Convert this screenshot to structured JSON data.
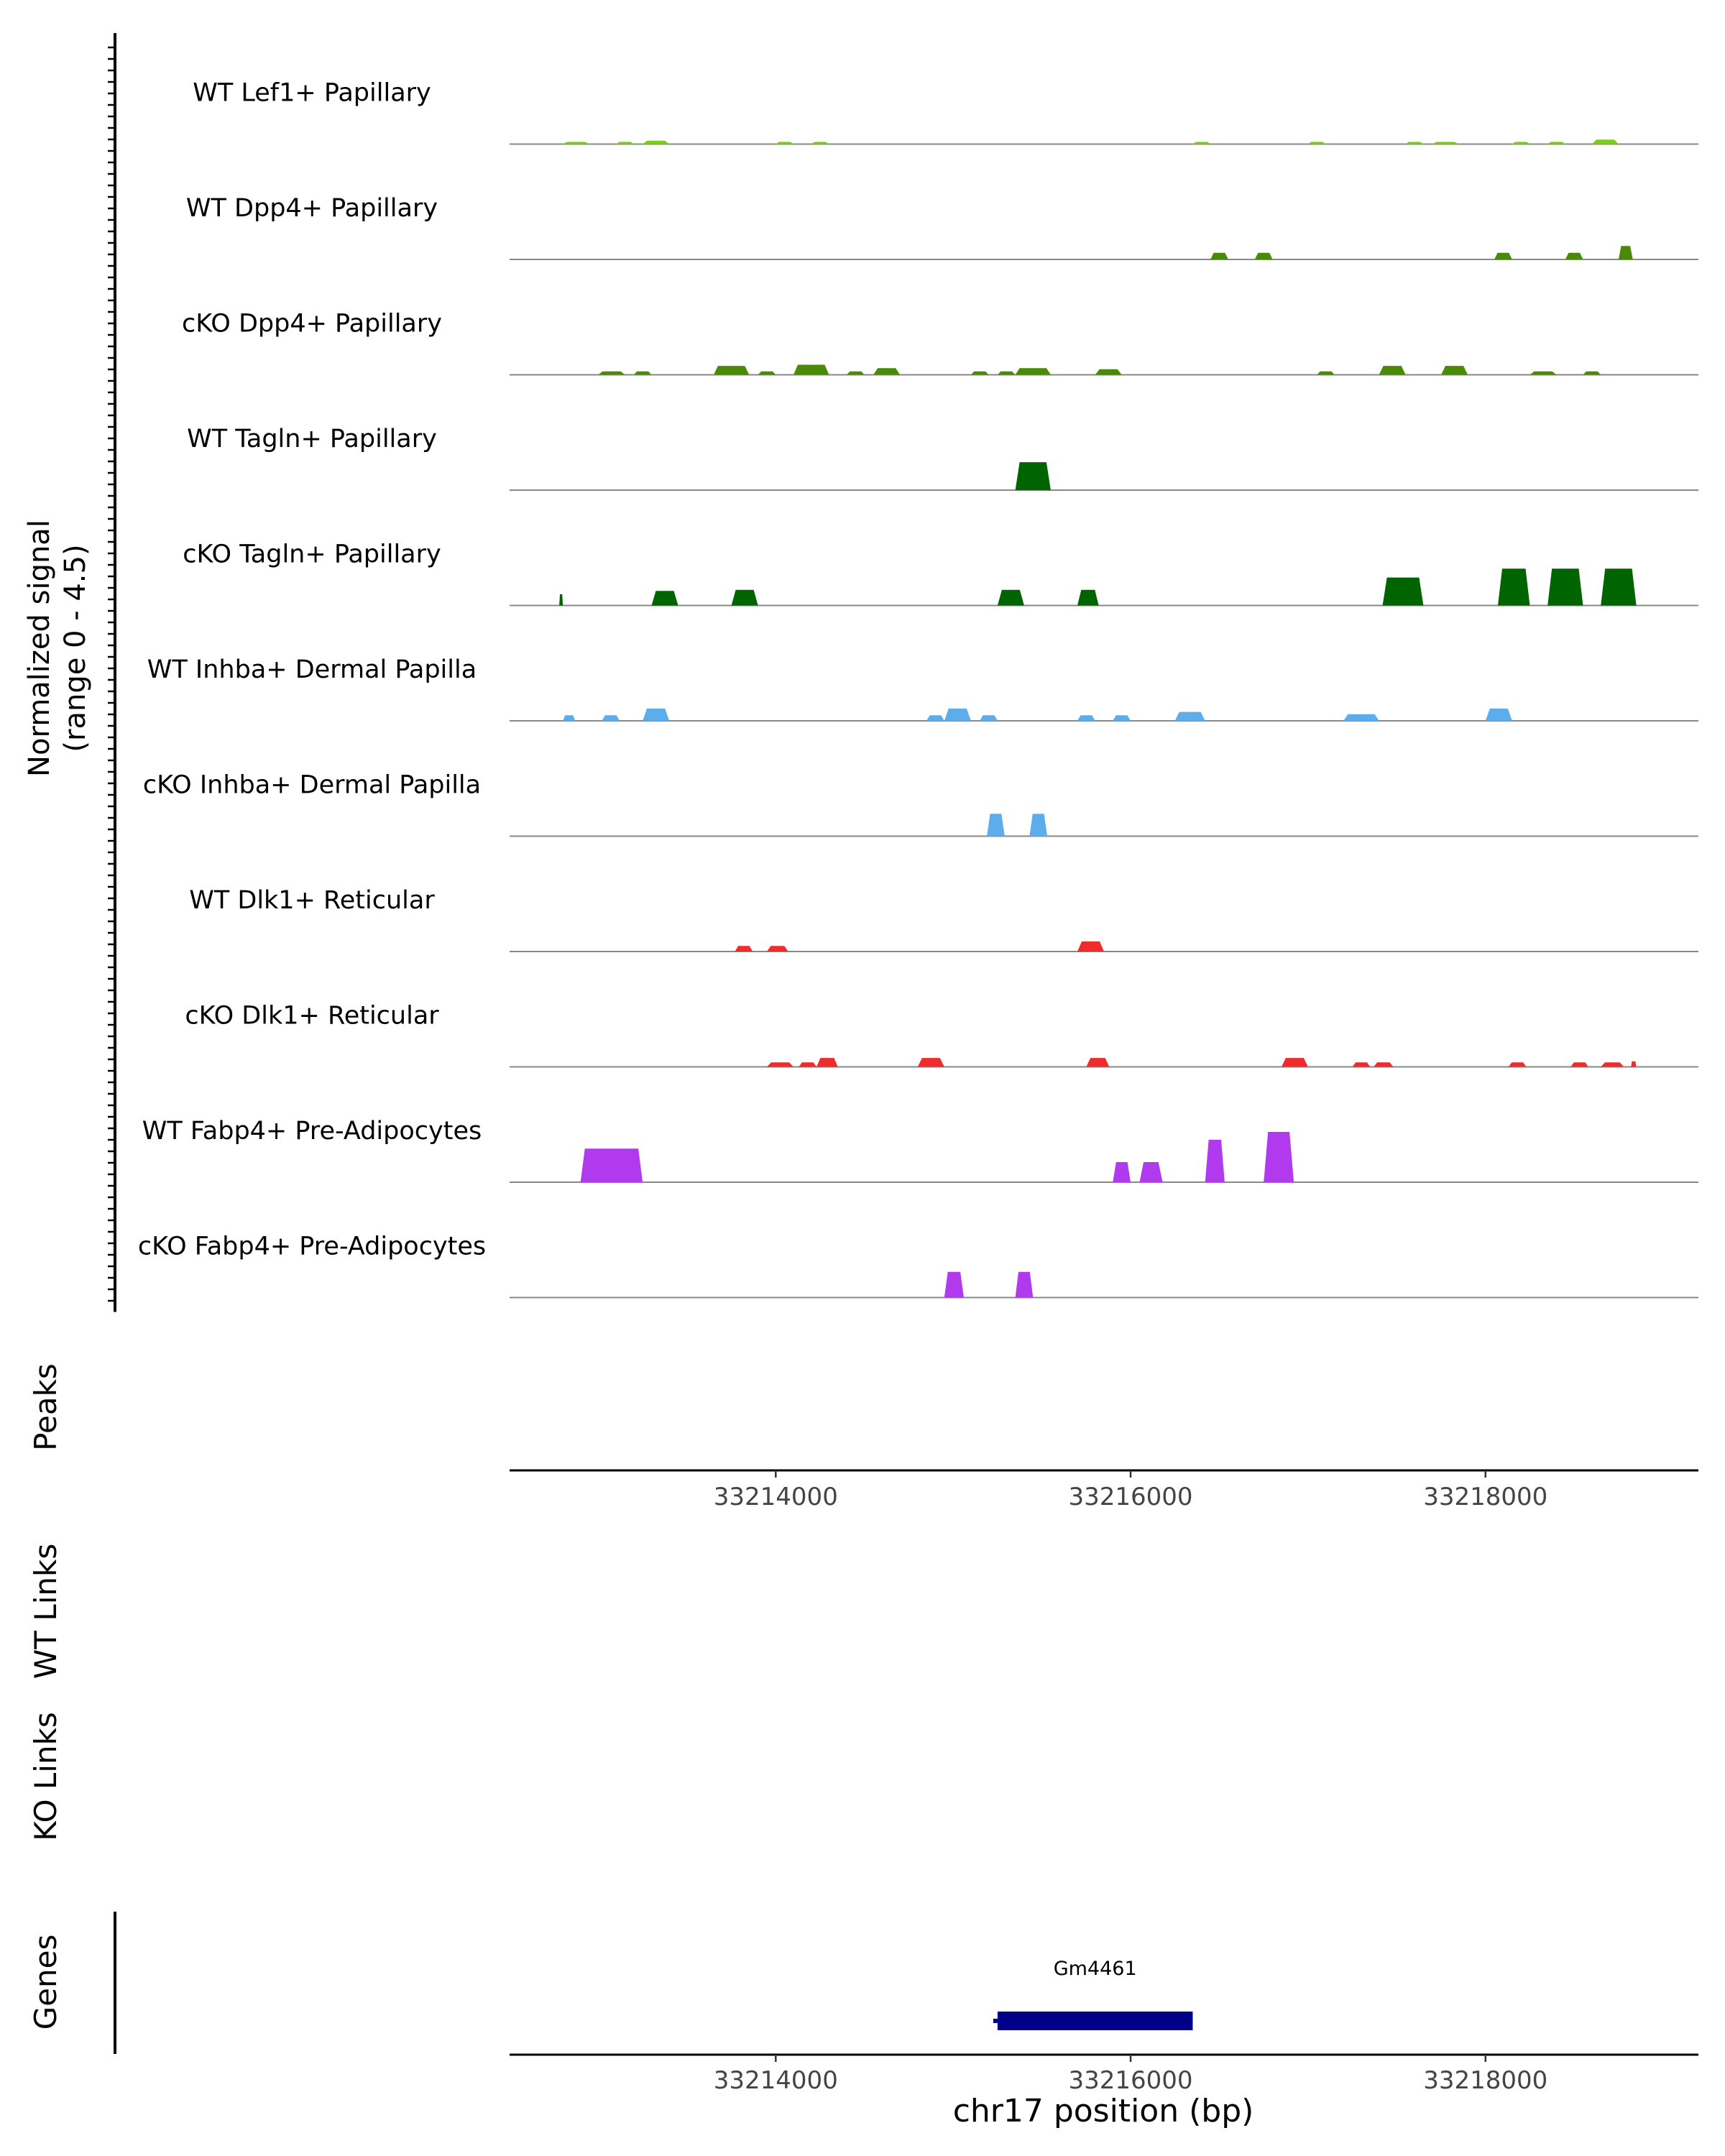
{
  "chart_data": {
    "type": "area",
    "genomic_range": [
      33212500,
      33219200
    ],
    "signal_ylabel": [
      "Normalized signal",
      "(range 0 - 4.5)"
    ],
    "signal_ylim": [
      0,
      4.5
    ],
    "xlabel": "chr17 position (bp)",
    "x_ticks": [
      33214000,
      33216000,
      33218000
    ],
    "x_tick_labels": [
      "33214000",
      "33216000",
      "33218000"
    ],
    "panel_labels": {
      "peaks": "Peaks",
      "wt_links": "WT Links",
      "ko_links": "KO Links",
      "genes": "Genes"
    },
    "tracks": [
      {
        "name": "WT Lef1+ Papillary",
        "color": "#7CCD1A",
        "peaks": [
          [
            33212800,
            33212950,
            0.2
          ],
          [
            33213100,
            33213200,
            0.2
          ],
          [
            33213250,
            33213400,
            0.3
          ],
          [
            33214000,
            33214100,
            0.2
          ],
          [
            33214200,
            33214300,
            0.2
          ],
          [
            33216350,
            33216450,
            0.2
          ],
          [
            33217000,
            33217100,
            0.2
          ],
          [
            33217550,
            33217650,
            0.2
          ],
          [
            33217700,
            33217850,
            0.2
          ],
          [
            33218150,
            33218250,
            0.2
          ],
          [
            33218350,
            33218450,
            0.2
          ],
          [
            33218600,
            33218750,
            0.4
          ]
        ]
      },
      {
        "name": "WT Dpp4+ Papillary",
        "color": "#4B8A08",
        "peaks": [
          [
            33216450,
            33216550,
            0.6
          ],
          [
            33216700,
            33216800,
            0.6
          ],
          [
            33218050,
            33218150,
            0.6
          ],
          [
            33218450,
            33218550,
            0.6
          ],
          [
            33218750,
            33218830,
            1.2
          ]
        ]
      },
      {
        "name": "cKO Dpp4+ Papillary",
        "color": "#4B8A08",
        "peaks": [
          [
            33213000,
            33213150,
            0.3
          ],
          [
            33213200,
            33213300,
            0.3
          ],
          [
            33213650,
            33213850,
            0.8
          ],
          [
            33213900,
            33214000,
            0.3
          ],
          [
            33214100,
            33214300,
            0.9
          ],
          [
            33214400,
            33214500,
            0.3
          ],
          [
            33214550,
            33214700,
            0.6
          ],
          [
            33215100,
            33215200,
            0.3
          ],
          [
            33215250,
            33215350,
            0.3
          ],
          [
            33215350,
            33215550,
            0.6
          ],
          [
            33215800,
            33215950,
            0.5
          ],
          [
            33217050,
            33217150,
            0.3
          ],
          [
            33217400,
            33217550,
            0.8
          ],
          [
            33217750,
            33217900,
            0.8
          ],
          [
            33218250,
            33218400,
            0.3
          ],
          [
            33218550,
            33218650,
            0.3
          ]
        ]
      },
      {
        "name": "WT Tagln+ Papillary",
        "color": "#006400",
        "peaks": [
          [
            33215350,
            33215550,
            2.5
          ]
        ]
      },
      {
        "name": "cKO Tagln+ Papillary",
        "color": "#006400",
        "peaks": [
          [
            33212780,
            33212800,
            1.0
          ],
          [
            33213300,
            33213450,
            1.3
          ],
          [
            33213750,
            33213900,
            1.4
          ],
          [
            33215250,
            33215400,
            1.4
          ],
          [
            33215700,
            33215820,
            1.4
          ],
          [
            33217420,
            33217650,
            2.5
          ],
          [
            33218070,
            33218250,
            3.3
          ],
          [
            33218350,
            33218550,
            3.3
          ],
          [
            33218650,
            33218850,
            3.3
          ]
        ]
      },
      {
        "name": "WT Inhba+ Dermal Papilla",
        "color": "#5DADEC",
        "peaks": [
          [
            33212800,
            33212870,
            0.5
          ],
          [
            33213020,
            33213120,
            0.5
          ],
          [
            33213250,
            33213400,
            1.1
          ],
          [
            33214850,
            33214950,
            0.5
          ],
          [
            33214950,
            33215100,
            1.1
          ],
          [
            33215150,
            33215250,
            0.5
          ],
          [
            33215700,
            33215800,
            0.5
          ],
          [
            33215900,
            33216000,
            0.5
          ],
          [
            33216250,
            33216420,
            0.8
          ],
          [
            33217200,
            33217400,
            0.6
          ],
          [
            33218000,
            33218150,
            1.1
          ]
        ]
      },
      {
        "name": "cKO Inhba+ Dermal Papilla",
        "color": "#5DADEC",
        "peaks": [
          [
            33215190,
            33215290,
            2.0
          ],
          [
            33215430,
            33215530,
            2.0
          ]
        ]
      },
      {
        "name": "WT Dlk1+ Reticular",
        "color": "#EE2C2C",
        "peaks": [
          [
            33213770,
            33213870,
            0.5
          ],
          [
            33213950,
            33214070,
            0.5
          ],
          [
            33215700,
            33215850,
            0.9
          ]
        ]
      },
      {
        "name": "cKO Dlk1+ Reticular",
        "color": "#EE2C2C",
        "peaks": [
          [
            33213950,
            33214100,
            0.4
          ],
          [
            33214130,
            33214230,
            0.4
          ],
          [
            33214230,
            33214350,
            0.8
          ],
          [
            33214800,
            33214950,
            0.8
          ],
          [
            33215750,
            33215880,
            0.8
          ],
          [
            33216850,
            33217000,
            0.8
          ],
          [
            33217250,
            33217350,
            0.4
          ],
          [
            33217370,
            33217480,
            0.4
          ],
          [
            33218130,
            33218230,
            0.4
          ],
          [
            33218480,
            33218580,
            0.4
          ],
          [
            33218650,
            33218780,
            0.4
          ],
          [
            33218820,
            33218850,
            0.5
          ]
        ]
      },
      {
        "name": "WT Fabp4+ Pre-Adipocytes",
        "color": "#B23AEE",
        "peaks": [
          [
            33212900,
            33213250,
            3.0
          ],
          [
            33215900,
            33216000,
            1.8
          ],
          [
            33216050,
            33216180,
            1.8
          ],
          [
            33216420,
            33216530,
            3.8
          ],
          [
            33216750,
            33216920,
            4.5
          ]
        ]
      },
      {
        "name": "cKO Fabp4+ Pre-Adipocytes",
        "color": "#B23AEE",
        "peaks": [
          [
            33214950,
            33215060,
            2.3
          ],
          [
            33215350,
            33215450,
            2.3
          ]
        ]
      }
    ],
    "gene": {
      "name": "Gm4461",
      "start": 33215250,
      "end": 33216350,
      "color": "#00008B"
    }
  }
}
